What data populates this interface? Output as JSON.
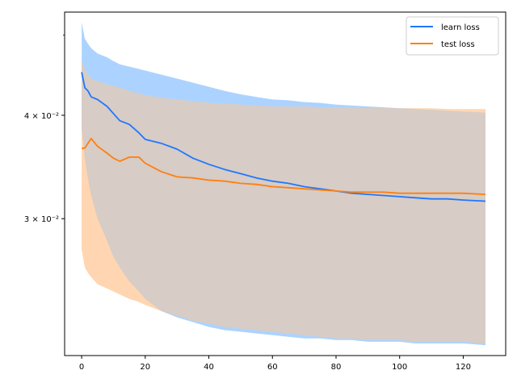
{
  "chart_data": {
    "type": "line",
    "title": "",
    "xlabel": "",
    "ylabel": "",
    "yscale": "log",
    "xlim": [
      -5.35,
      133.35
    ],
    "ylim": [
      0.0205,
      0.0533
    ],
    "xticks": [
      0,
      20,
      40,
      60,
      80,
      100,
      120
    ],
    "xtick_labels": [
      "0",
      "20",
      "40",
      "60",
      "80",
      "100",
      "120"
    ],
    "yticks_major": [
      0.03,
      0.04
    ],
    "ytick_labels": [
      "3 × 10⁻²",
      "4 × 10⁻²"
    ],
    "yticks_minor": [
      0.05
    ],
    "grid": false,
    "legend_position": "upper right",
    "legend_entries": [
      "learn loss",
      "test loss"
    ],
    "colors": {
      "learn": "#1f77ff",
      "test": "#ff7f0e",
      "learn_band": "#a8d1ff",
      "test_band": "#ffcfa3",
      "overlap_band": "#d7ccc6"
    },
    "x_anchors": [
      0,
      1,
      2,
      3,
      5,
      8,
      10,
      12,
      15,
      18,
      20,
      25,
      30,
      35,
      40,
      45,
      50,
      55,
      60,
      65,
      70,
      75,
      80,
      85,
      90,
      95,
      100,
      105,
      110,
      115,
      120,
      127
    ],
    "series": [
      {
        "name": "learn loss",
        "mean": [
          0.0451,
          0.0432,
          0.0428,
          0.0421,
          0.0418,
          0.041,
          0.0402,
          0.0394,
          0.039,
          0.0381,
          0.0374,
          0.037,
          0.0364,
          0.0355,
          0.0349,
          0.0344,
          0.034,
          0.0336,
          0.0333,
          0.0331,
          0.0328,
          0.0326,
          0.0324,
          0.0322,
          0.0321,
          0.032,
          0.0319,
          0.0318,
          0.0317,
          0.0317,
          0.0316,
          0.0315
        ],
        "upper": [
          0.0518,
          0.0495,
          0.0488,
          0.0482,
          0.0475,
          0.047,
          0.0465,
          0.0461,
          0.0458,
          0.0455,
          0.0453,
          0.0448,
          0.0443,
          0.0438,
          0.0433,
          0.0428,
          0.0424,
          0.0421,
          0.0418,
          0.0417,
          0.0415,
          0.0414,
          0.0412,
          0.0411,
          0.041,
          0.0409,
          0.0408,
          0.0407,
          0.0406,
          0.0405,
          0.0404,
          0.0403
        ],
        "lower": [
          0.0385,
          0.0355,
          0.0335,
          0.032,
          0.03,
          0.0282,
          0.027,
          0.0262,
          0.0252,
          0.0245,
          0.024,
          0.0232,
          0.0228,
          0.0225,
          0.0222,
          0.022,
          0.0219,
          0.0218,
          0.0217,
          0.0216,
          0.0215,
          0.0215,
          0.0214,
          0.0214,
          0.0213,
          0.0213,
          0.0213,
          0.0212,
          0.0212,
          0.0212,
          0.0212,
          0.0211
        ]
      },
      {
        "name": "test loss",
        "mean": [
          0.0365,
          0.0365,
          0.037,
          0.0375,
          0.0367,
          0.036,
          0.0355,
          0.0352,
          0.0356,
          0.0356,
          0.035,
          0.0342,
          0.0337,
          0.0336,
          0.0334,
          0.0333,
          0.0331,
          0.033,
          0.0328,
          0.0327,
          0.0326,
          0.0325,
          0.0324,
          0.0323,
          0.0323,
          0.0323,
          0.0322,
          0.0322,
          0.0322,
          0.0322,
          0.0322,
          0.0321
        ],
        "upper": [
          0.0465,
          0.0455,
          0.0448,
          0.0443,
          0.044,
          0.0436,
          0.0434,
          0.0432,
          0.0428,
          0.0425,
          0.0423,
          0.042,
          0.0418,
          0.0416,
          0.0414,
          0.0413,
          0.0412,
          0.0411,
          0.041,
          0.041,
          0.041,
          0.0409,
          0.0409,
          0.0409,
          0.0408,
          0.0408,
          0.0408,
          0.0408,
          0.0408,
          0.0407,
          0.0407,
          0.0407
        ],
        "lower": [
          0.0275,
          0.0262,
          0.0258,
          0.0255,
          0.025,
          0.0247,
          0.0245,
          0.0243,
          0.024,
          0.0238,
          0.0236,
          0.0232,
          0.0229,
          0.0226,
          0.0224,
          0.0222,
          0.0221,
          0.022,
          0.0219,
          0.0218,
          0.0217,
          0.0216,
          0.0215,
          0.0215,
          0.0214,
          0.0214,
          0.0214,
          0.0213,
          0.0213,
          0.0213,
          0.0213,
          0.0212
        ]
      }
    ]
  }
}
